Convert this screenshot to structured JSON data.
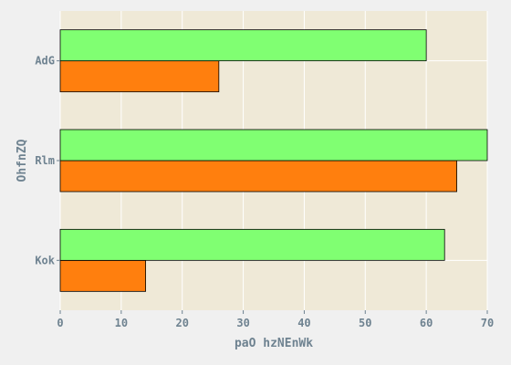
{
  "chart_data": {
    "type": "bar",
    "orientation": "horizontal",
    "categories": [
      "Kok",
      "Rlm",
      "AdG"
    ],
    "series": [
      {
        "values": [
          14,
          65,
          26
        ],
        "color": "#ff7f0e"
      },
      {
        "values": [
          63,
          70,
          60
        ],
        "color": "#80ff72"
      }
    ],
    "xlabel": "paO hzNEnWk",
    "ylabel": "OhfnZQ",
    "xlim": [
      0,
      70
    ],
    "xticks": [
      0,
      10,
      20,
      30,
      40,
      50,
      60,
      70
    ],
    "grid": true,
    "plot_background": "#efe9d7",
    "figure_background": "#f0f0f0",
    "text_color": "#6e8290"
  }
}
